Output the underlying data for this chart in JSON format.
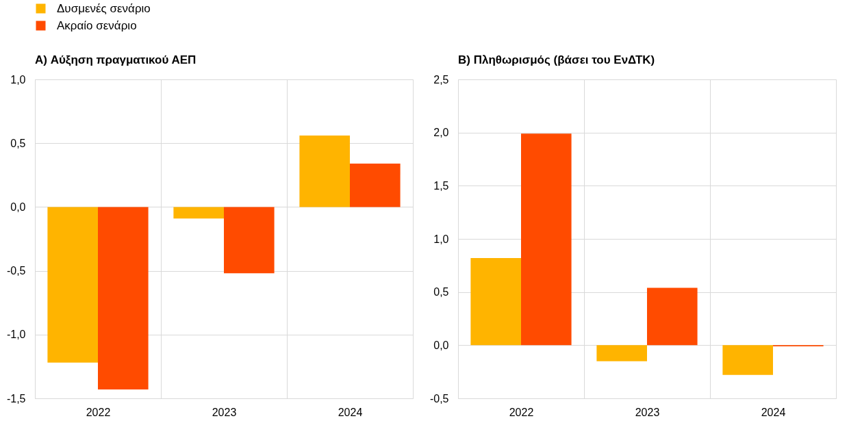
{
  "chart_data": [
    {
      "type": "bar",
      "title": "A) Αύξηση πραγματικού ΑΕΠ",
      "categories": [
        "2022",
        "2023",
        "2024"
      ],
      "series": [
        {
          "name": "Δυσμενές σενάριο",
          "color": "#ffb400",
          "values": [
            -1.22,
            -0.09,
            0.56
          ]
        },
        {
          "name": "Ακραίο σενάριο",
          "color": "#ff4b00",
          "values": [
            -1.43,
            -0.52,
            0.34
          ]
        }
      ],
      "ylim": [
        -1.5,
        1.0
      ],
      "yticks": [
        {
          "value": -1.5,
          "label": "-1,5"
        },
        {
          "value": -1.0,
          "label": "-1,0"
        },
        {
          "value": -0.5,
          "label": "-0,5"
        },
        {
          "value": 0.0,
          "label": "0,0"
        },
        {
          "value": 0.5,
          "label": "0,5"
        },
        {
          "value": 1.0,
          "label": "1,0"
        }
      ],
      "grid": true,
      "legend": "top left"
    },
    {
      "type": "bar",
      "title": "B) Πληθωρισμός (βάσει του ΕνΔΤΚ)",
      "categories": [
        "2022",
        "2023",
        "2024"
      ],
      "series": [
        {
          "name": "Δυσμενές σενάριο",
          "color": "#ffb400",
          "values": [
            0.82,
            -0.15,
            -0.28
          ]
        },
        {
          "name": "Ακραίο σενάριο",
          "color": "#ff4b00",
          "values": [
            1.99,
            0.54,
            -0.01
          ]
        }
      ],
      "ylim": [
        -0.5,
        2.5
      ],
      "yticks": [
        {
          "value": -0.5,
          "label": "-0,5"
        },
        {
          "value": 0.0,
          "label": "0,0"
        },
        {
          "value": 0.5,
          "label": "0,5"
        },
        {
          "value": 1.0,
          "label": "1,0"
        },
        {
          "value": 1.5,
          "label": "1,5"
        },
        {
          "value": 2.0,
          "label": "2,0"
        },
        {
          "value": 2.5,
          "label": "2,5"
        }
      ],
      "grid": true,
      "legend": false
    }
  ]
}
